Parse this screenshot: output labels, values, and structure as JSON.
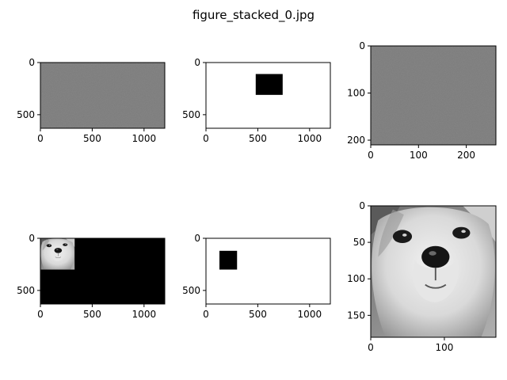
{
  "figure": {
    "title": "figure_stacked_0.jpg"
  },
  "chart_data": [
    {
      "type": "heatmap",
      "content": "uniform-gray-noise",
      "image_size": [
        1200,
        630
      ],
      "xlim": [
        0,
        1200
      ],
      "ylim": [
        630,
        0
      ],
      "xticks": [
        0,
        500,
        1000
      ],
      "yticks": [
        0,
        500
      ],
      "fill": "#7b7b7b"
    },
    {
      "type": "heatmap",
      "content": "white-with-black-rectangle",
      "image_size": [
        1200,
        630
      ],
      "xlim": [
        0,
        1200
      ],
      "ylim": [
        630,
        0
      ],
      "xticks": [
        0,
        500,
        1000
      ],
      "yticks": [
        0,
        500
      ],
      "fill": "#ffffff",
      "rects": [
        {
          "x0": 480,
          "y0": 110,
          "x1": 740,
          "y1": 310,
          "fill": "#000000"
        }
      ]
    },
    {
      "type": "heatmap",
      "content": "uniform-gray-noise",
      "image_size": [
        262,
        210
      ],
      "xlim": [
        0,
        262
      ],
      "ylim": [
        210,
        0
      ],
      "xticks": [
        0,
        100,
        200
      ],
      "yticks": [
        0,
        100,
        200
      ],
      "fill": "#7b7b7b"
    },
    {
      "type": "heatmap",
      "content": "black-with-puppy-inset",
      "image_size": [
        1200,
        630
      ],
      "xlim": [
        0,
        1200
      ],
      "ylim": [
        630,
        0
      ],
      "xticks": [
        0,
        500,
        1000
      ],
      "yticks": [
        0,
        500
      ],
      "fill": "#000000",
      "inset": {
        "x0": 0,
        "y0": 0,
        "x1": 330,
        "y1": 300,
        "content": "puppy"
      }
    },
    {
      "type": "heatmap",
      "content": "white-with-black-rectangle",
      "image_size": [
        1200,
        630
      ],
      "xlim": [
        0,
        1200
      ],
      "ylim": [
        630,
        0
      ],
      "xticks": [
        0,
        500,
        1000
      ],
      "yticks": [
        0,
        500
      ],
      "fill": "#ffffff",
      "rects": [
        {
          "x0": 130,
          "y0": 120,
          "x1": 300,
          "y1": 300,
          "fill": "#000000"
        }
      ]
    },
    {
      "type": "heatmap",
      "content": "puppy",
      "image_size": [
        170,
        180
      ],
      "xlim": [
        0,
        170
      ],
      "ylim": [
        180,
        0
      ],
      "xticks": [
        0,
        100
      ],
      "yticks": [
        0,
        50,
        100,
        150
      ],
      "fill": "#8f8f8f"
    }
  ]
}
